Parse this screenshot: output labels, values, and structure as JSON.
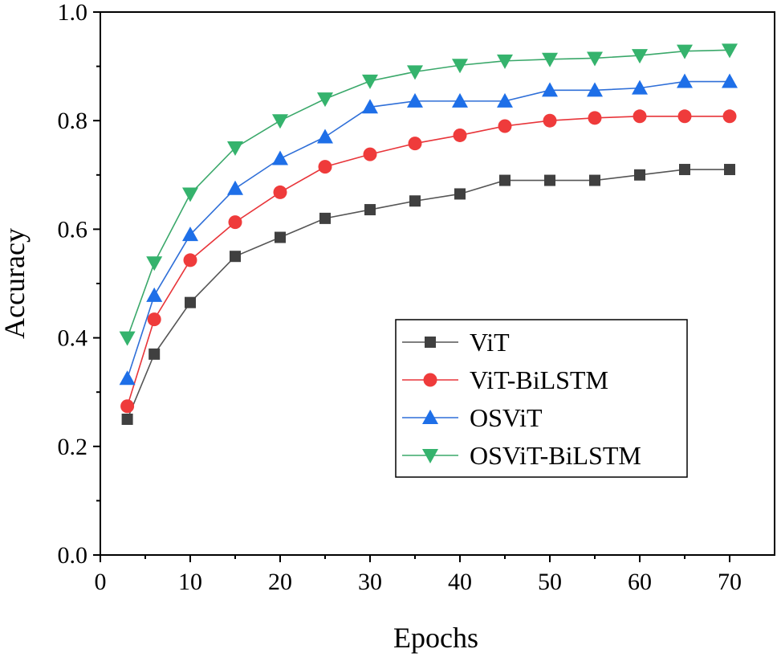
{
  "chart_data": {
    "type": "line",
    "title": "",
    "xlabel": "Epochs",
    "ylabel": "Accuracy",
    "xlim": [
      0,
      75
    ],
    "ylim": [
      0,
      1.0
    ],
    "xticks": [
      0,
      10,
      20,
      30,
      40,
      50,
      60,
      70
    ],
    "xtick_labels": [
      "0",
      "10",
      "20",
      "30",
      "40",
      "50",
      "60",
      "70"
    ],
    "yticks": [
      0.0,
      0.2,
      0.4,
      0.6,
      0.8,
      1.0
    ],
    "ytick_labels": [
      "0.0",
      "0.2",
      "0.4",
      "0.6",
      "0.8",
      "1.0"
    ],
    "grid": false,
    "legend_position": "center-right",
    "x": [
      3,
      6,
      10,
      15,
      20,
      25,
      30,
      35,
      40,
      45,
      50,
      55,
      60,
      65,
      70
    ],
    "series": [
      {
        "name": "ViT",
        "marker": "square",
        "line_color": "#555555",
        "marker_color": "#404040",
        "values": [
          0.25,
          0.37,
          0.465,
          0.55,
          0.585,
          0.62,
          0.636,
          0.652,
          0.665,
          0.69,
          0.69,
          0.69,
          0.7,
          0.71,
          0.71
        ]
      },
      {
        "name": "ViT-BiLSTM",
        "marker": "circle",
        "line_color": "#e8353a",
        "marker_color": "#ef3b3b",
        "values": [
          0.274,
          0.434,
          0.543,
          0.613,
          0.668,
          0.715,
          0.738,
          0.758,
          0.773,
          0.79,
          0.8,
          0.805,
          0.808,
          0.808,
          0.808
        ]
      },
      {
        "name": "OSViT",
        "marker": "triangle-up",
        "line_color": "#2f6fd8",
        "marker_color": "#1e6fe8",
        "values": [
          0.325,
          0.478,
          0.59,
          0.675,
          0.73,
          0.77,
          0.825,
          0.836,
          0.836,
          0.836,
          0.856,
          0.856,
          0.86,
          0.872,
          0.872
        ]
      },
      {
        "name": "OSViT-BiLSTM",
        "marker": "triangle-down",
        "line_color": "#3aa86a",
        "marker_color": "#35b36d",
        "values": [
          0.4,
          0.538,
          0.665,
          0.75,
          0.8,
          0.84,
          0.873,
          0.89,
          0.902,
          0.91,
          0.913,
          0.915,
          0.92,
          0.928,
          0.93
        ]
      }
    ]
  }
}
